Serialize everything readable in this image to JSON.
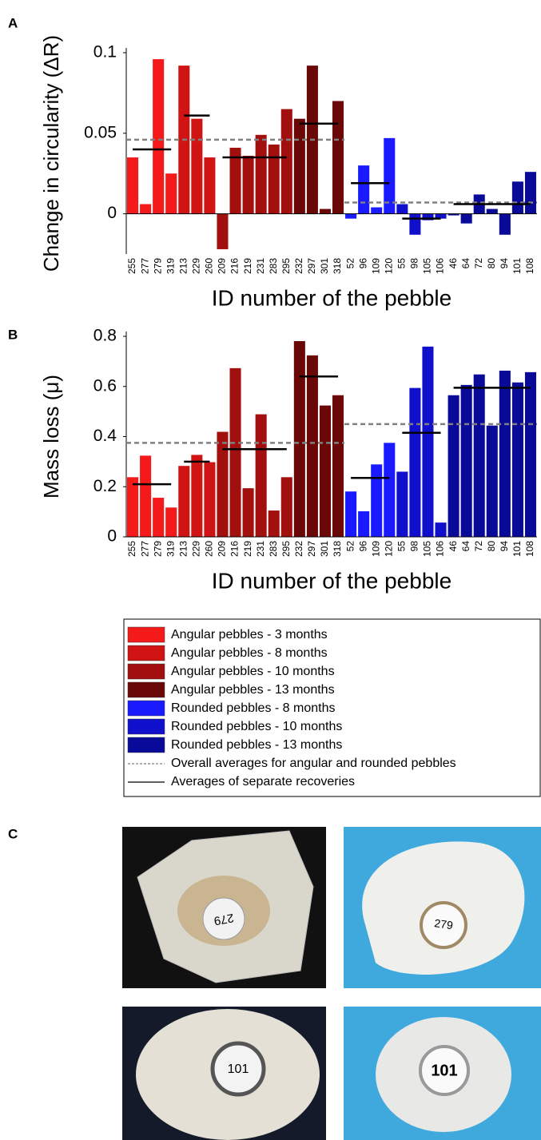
{
  "chart_data": [
    {
      "type": "bar",
      "panel": "A",
      "ylabel": "Change in circularity (ΔR)",
      "xlabel": "ID number of the pebble",
      "ylim": [
        -0.025,
        0.1
      ],
      "yticks": [
        0,
        0.05,
        0.1
      ],
      "series": [
        {
          "name": "Angular pebbles - 3 months",
          "color": "#f41a1a",
          "categories": [
            "255",
            "277",
            "279",
            "319"
          ],
          "values": [
            0.035,
            0.006,
            0.096,
            0.025
          ],
          "average": 0.04
        },
        {
          "name": "Angular pebbles - 8 months",
          "color": "#d01414",
          "categories": [
            "213",
            "229",
            "260"
          ],
          "values": [
            0.092,
            0.059,
            0.035
          ],
          "average": 0.061
        },
        {
          "name": "Angular pebbles - 10 months",
          "color": "#a10f0f",
          "categories": [
            "209",
            "216",
            "219",
            "231",
            "283",
            "295"
          ],
          "values": [
            -0.022,
            0.041,
            0.036,
            0.049,
            0.043,
            0.065
          ],
          "average": 0.035
        },
        {
          "name": "Angular pebbles - 13 months",
          "color": "#6a0808",
          "categories": [
            "232",
            "297",
            "301",
            "318"
          ],
          "values": [
            0.059,
            0.092,
            0.003,
            0.07
          ],
          "average": 0.056
        },
        {
          "name": "Rounded pebbles - 8 months",
          "color": "#1a1aff",
          "categories": [
            "52",
            "96",
            "109",
            "120"
          ],
          "values": [
            -0.003,
            0.03,
            0.004,
            0.047
          ],
          "average": 0.019
        },
        {
          "name": "Rounded pebbles - 10 months",
          "color": "#1010cc",
          "categories": [
            "55",
            "98",
            "105",
            "106"
          ],
          "values": [
            0.006,
            -0.013,
            -0.004,
            -0.003
          ],
          "average": -0.003
        },
        {
          "name": "Rounded pebbles - 13 months",
          "color": "#0a0a9a",
          "categories": [
            "46",
            "64",
            "72",
            "80",
            "94",
            "101",
            "108"
          ],
          "values": [
            -0.001,
            -0.006,
            0.012,
            0.003,
            -0.013,
            0.02,
            0.026
          ],
          "average": 0.006
        }
      ],
      "overall_averages": [
        0.046,
        0.007
      ]
    },
    {
      "type": "bar",
      "panel": "B",
      "ylabel": "Mass loss (μ)",
      "xlabel": "ID number of the pebble",
      "ylim": [
        0,
        0.8
      ],
      "yticks": [
        0,
        0.2,
        0.4,
        0.6,
        0.8
      ],
      "series": [
        {
          "color": "#f41a1a",
          "categories": [
            "255",
            "277",
            "279",
            "319"
          ],
          "values": [
            0.238,
            0.324,
            0.156,
            0.117
          ],
          "average": 0.21
        },
        {
          "color": "#d01414",
          "categories": [
            "213",
            "229",
            "260"
          ],
          "values": [
            0.283,
            0.327,
            0.298
          ],
          "average": 0.3
        },
        {
          "color": "#a10f0f",
          "categories": [
            "209",
            "216",
            "219",
            "231",
            "283",
            "295"
          ],
          "values": [
            0.419,
            0.673,
            0.194,
            0.489,
            0.105,
            0.238
          ],
          "average": 0.35
        },
        {
          "color": "#6a0808",
          "categories": [
            "232",
            "297",
            "301",
            "318"
          ],
          "values": [
            0.781,
            0.724,
            0.524,
            0.565
          ],
          "average": 0.64
        },
        {
          "color": "#1a1aff",
          "categories": [
            "52",
            "96",
            "109",
            "120"
          ],
          "values": [
            0.181,
            0.102,
            0.289,
            0.375
          ],
          "average": 0.235
        },
        {
          "color": "#1010cc",
          "categories": [
            "55",
            "98",
            "105",
            "106"
          ],
          "values": [
            0.26,
            0.594,
            0.759,
            0.057
          ],
          "average": 0.415
        },
        {
          "color": "#0a0a9a",
          "categories": [
            "46",
            "64",
            "72",
            "80",
            "94",
            "101",
            "108"
          ],
          "values": [
            0.565,
            0.606,
            0.648,
            0.444,
            0.663,
            0.616,
            0.657
          ],
          "average": 0.595
        }
      ],
      "overall_averages": [
        0.375,
        0.45
      ]
    }
  ],
  "legend": {
    "overall_label": "Overall averages for angular and rounded pebbles",
    "group_label": "Averages of separate recoveries"
  },
  "photos": {
    "panel": "C",
    "labels": [
      "279",
      "279",
      "101",
      "101"
    ]
  }
}
